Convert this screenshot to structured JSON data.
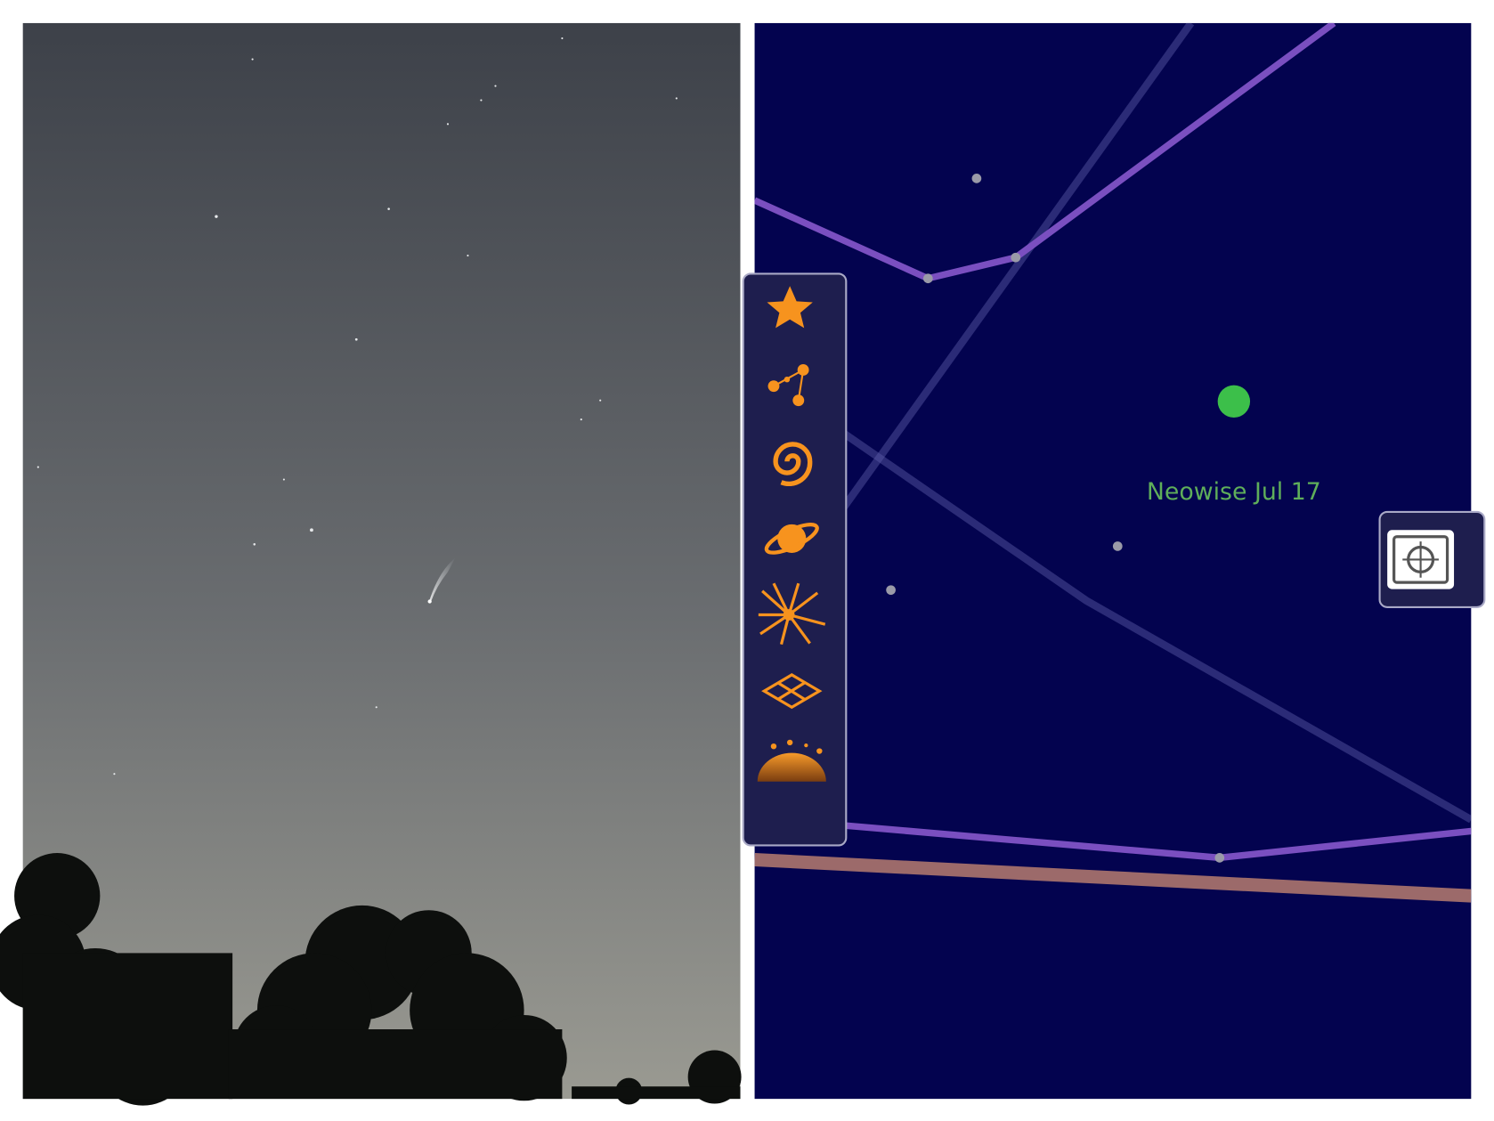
{
  "sky_map": {
    "label": "Neowise Jul 17"
  }
}
